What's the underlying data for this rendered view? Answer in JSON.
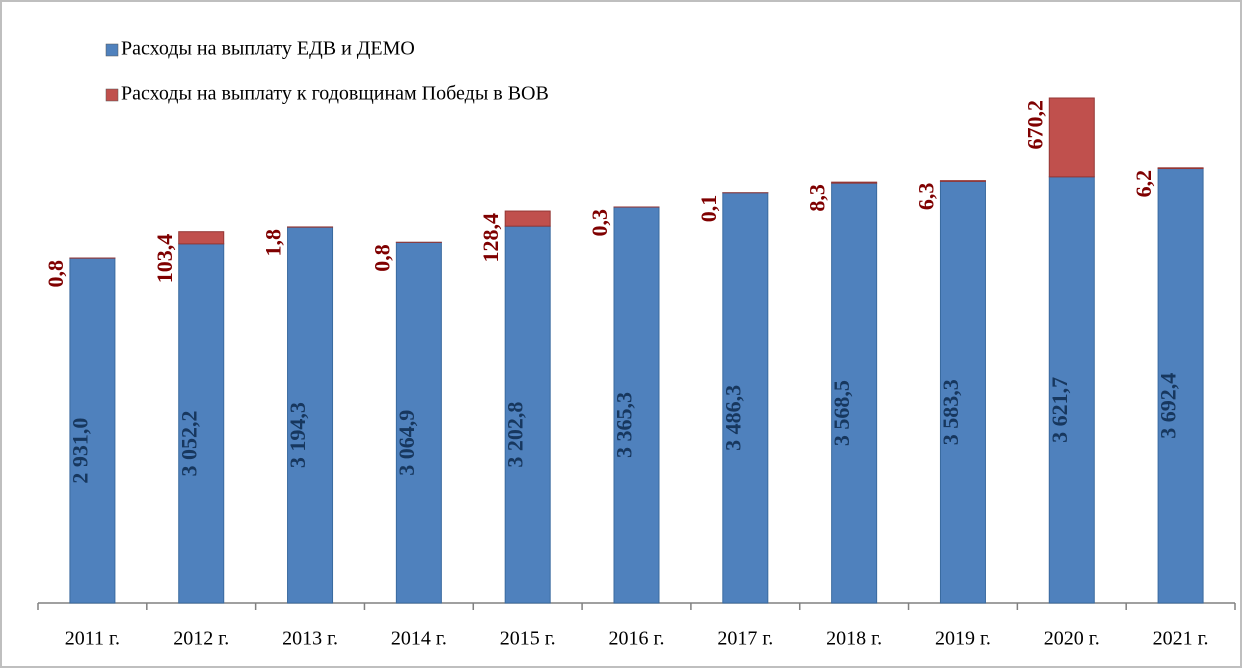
{
  "chart_data": {
    "type": "stacked_bar",
    "categories": [
      "2011 г.",
      "2012 г.",
      "2013 г.",
      "2014 г.",
      "2015 г.",
      "2016 г.",
      "2017 г.",
      "2018 г.",
      "2019 г.",
      "2020 г.",
      "2021 г."
    ],
    "series": [
      {
        "name": "Расходы на выплату ЕДВ и ДЕМО",
        "color": "#4f81bd",
        "label_color": "#17375e",
        "values": [
          2931.0,
          3052.2,
          3194.3,
          3064.9,
          3202.8,
          3365.3,
          3486.3,
          3568.5,
          3583.3,
          3621.7,
          3692.4
        ],
        "value_labels": [
          "2 931,0",
          "3 052,2",
          "3 194,3",
          "3 064,9",
          "3 202,8",
          "3 365,3",
          "3 486,3",
          "3 568,5",
          "3 583,3",
          "3 621,7",
          "3 692,4"
        ]
      },
      {
        "name": "Расходы на выплату к годовщинам Победы в ВОВ",
        "color": "#c0504d",
        "label_color": "#7f0000",
        "values": [
          0.8,
          103.4,
          1.8,
          0.8,
          128.4,
          0.3,
          0.1,
          8.3,
          6.3,
          670.2,
          6.2
        ],
        "value_labels": [
          "0,8",
          "103,4",
          "1,8",
          "0,8",
          "128,4",
          "0,3",
          "0,1",
          "8,3",
          "6,3",
          "670,2",
          "6,2"
        ]
      }
    ],
    "legend": "top-left"
  }
}
